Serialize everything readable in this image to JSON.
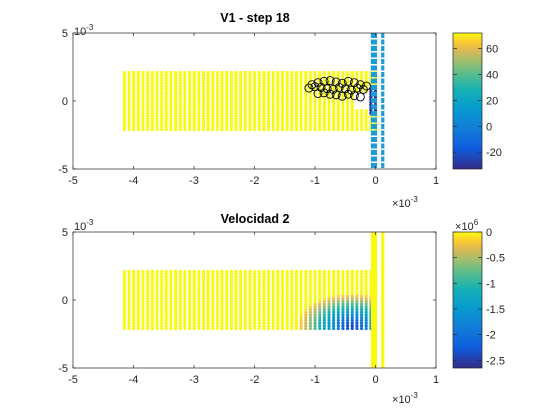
{
  "figure": {
    "background": "#ffffff"
  },
  "chart_data": [
    {
      "type": "scatter",
      "title": "V1 - step 18",
      "xlim": [
        -5,
        1
      ],
      "ylim": [
        -5,
        5
      ],
      "x_exponent": "10",
      "x_exponent_power": "-3",
      "y_exponent": "10",
      "y_exponent_power": "-3",
      "x_ticks": [
        -5,
        -4,
        -3,
        -2,
        -1,
        0,
        1
      ],
      "y_ticks": [
        -5,
        0,
        5
      ],
      "grid": false,
      "colormap": "parula",
      "colorbar": {
        "range": [
          -33,
          72
        ],
        "ticks": [
          -20,
          0,
          20,
          40,
          60
        ],
        "exponent": "",
        "exponent_power": ""
      },
      "field_region": {
        "x": [
          -4.15,
          0
        ],
        "y": [
          -2.1,
          2.1
        ]
      },
      "dominant_color": "#f9fb0e",
      "wall_lines_x": [
        -0.05,
        0.0,
        0.12
      ],
      "wall_line_color": "#1e9bd6",
      "marked_points": {
        "marker": "circle",
        "color": "#000000",
        "x": [
          -1.05,
          -0.95,
          -0.85,
          -0.75,
          -0.65,
          -0.55,
          -0.45,
          -0.35,
          -0.25,
          -0.15,
          -1.1,
          -1.0,
          -0.9,
          -0.8,
          -0.7,
          -0.6,
          -0.5,
          -0.4,
          -0.3,
          -0.2,
          -0.95,
          -0.85,
          -0.75,
          -0.65,
          -0.55,
          -0.45,
          -0.35,
          -0.25
        ],
        "y": [
          1.2,
          1.35,
          1.45,
          1.5,
          1.4,
          1.3,
          1.45,
          1.35,
          1.2,
          1.1,
          0.95,
          1.05,
          1.0,
          0.9,
          0.85,
          1.0,
          0.9,
          0.8,
          0.95,
          0.85,
          0.55,
          0.6,
          0.5,
          0.45,
          0.35,
          0.5,
          0.4,
          0.3
        ]
      }
    },
    {
      "type": "scatter",
      "title": "Velocidad 2",
      "xlim": [
        -5,
        1
      ],
      "ylim": [
        -5,
        5
      ],
      "x_exponent": "10",
      "x_exponent_power": "-3",
      "y_exponent": "10",
      "y_exponent_power": "-3",
      "x_ticks": [
        -5,
        -4,
        -3,
        -2,
        -1,
        0,
        1
      ],
      "y_ticks": [
        -5,
        0,
        5
      ],
      "grid": false,
      "colormap": "parula",
      "colorbar": {
        "range": [
          -2.65,
          0
        ],
        "ticks": [
          -2.5,
          -2,
          -1.5,
          -1,
          -0.5,
          0
        ],
        "exponent": "10",
        "exponent_power": "6"
      },
      "field_region": {
        "x": [
          -4.15,
          0
        ],
        "y": [
          -2.1,
          2.1
        ]
      },
      "dominant_color": "#f9fb0e",
      "wall_lines_x": [
        -0.05,
        0.0,
        0.12
      ],
      "wall_line_color": "#f9fb0e",
      "gradient_zone": {
        "x_start": -1.3,
        "x_end": 0,
        "y_bottom": -2.1,
        "min_value_at": [
          -0.4,
          -1.9
        ]
      }
    }
  ]
}
